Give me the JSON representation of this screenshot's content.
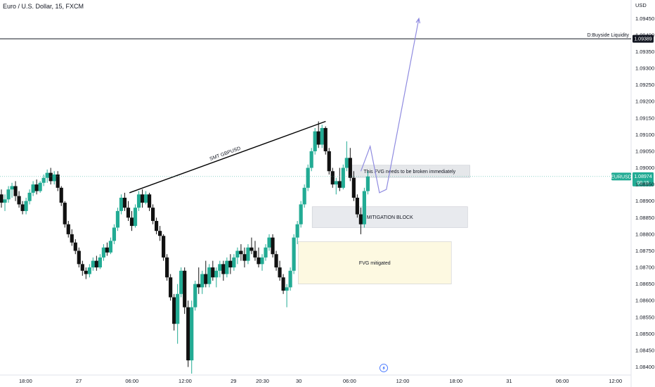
{
  "header": {
    "title": "Euro / U.S. Dollar, 15, FXCM"
  },
  "colors": {
    "up": "#22ab94",
    "down": "#111111",
    "arrow": "#8f8be0",
    "price_tag": "#22ab94",
    "liquidity_tag": "#131722"
  },
  "chart_data": {
    "type": "candlestick",
    "title": "Euro / U.S. Dollar, 15, FXCM",
    "y_axis": {
      "currency": "USD",
      "ylim": [
        1.0838,
        1.0951
      ],
      "ticks": [
        "1.09450",
        "1.09400",
        "1.09350",
        "1.09300",
        "1.09250",
        "1.09200",
        "1.09150",
        "1.09100",
        "1.09050",
        "1.09000",
        "1.08950",
        "1.08900",
        "1.08850",
        "1.08800",
        "1.08750",
        "1.08700",
        "1.08650",
        "1.08600",
        "1.08550",
        "1.08500",
        "1.08450",
        "1.08400"
      ]
    },
    "x_axis": {
      "ticks": [
        {
          "label": "18:00",
          "bar": 10
        },
        {
          "label": "27",
          "bar": 32
        },
        {
          "label": "06:00",
          "bar": 54
        },
        {
          "label": "12:00",
          "bar": 76
        },
        {
          "label": "29",
          "bar": 96
        },
        {
          "label": "20:30",
          "bar": 108
        },
        {
          "label": "30",
          "bar": 123
        },
        {
          "label": "06:00",
          "bar": 144
        },
        {
          "label": "12:00",
          "bar": 166
        },
        {
          "label": "18:00",
          "bar": 188
        },
        {
          "label": "31",
          "bar": 210
        },
        {
          "label": "06:00",
          "bar": 232
        },
        {
          "label": "12:00",
          "bar": 254
        }
      ]
    },
    "bar_count": 260,
    "candles": [
      {
        "o": 1.0892,
        "h": 1.08935,
        "l": 1.0888,
        "c": 1.08895
      },
      {
        "o": 1.08895,
        "h": 1.0892,
        "l": 1.0887,
        "c": 1.08905
      },
      {
        "o": 1.08905,
        "h": 1.08945,
        "l": 1.08895,
        "c": 1.08935
      },
      {
        "o": 1.08935,
        "h": 1.08955,
        "l": 1.0891,
        "c": 1.08945
      },
      {
        "o": 1.08945,
        "h": 1.0896,
        "l": 1.089,
        "c": 1.08915
      },
      {
        "o": 1.08915,
        "h": 1.0893,
        "l": 1.0888,
        "c": 1.0889
      },
      {
        "o": 1.0889,
        "h": 1.089,
        "l": 1.0886,
        "c": 1.0887
      },
      {
        "o": 1.0887,
        "h": 1.0891,
        "l": 1.0886,
        "c": 1.089
      },
      {
        "o": 1.089,
        "h": 1.08935,
        "l": 1.0889,
        "c": 1.08925
      },
      {
        "o": 1.08925,
        "h": 1.0896,
        "l": 1.08915,
        "c": 1.0895
      },
      {
        "o": 1.0895,
        "h": 1.08965,
        "l": 1.0892,
        "c": 1.0893
      },
      {
        "o": 1.0893,
        "h": 1.0896,
        "l": 1.08925,
        "c": 1.08955
      },
      {
        "o": 1.08955,
        "h": 1.0898,
        "l": 1.08945,
        "c": 1.0897
      },
      {
        "o": 1.0897,
        "h": 1.08995,
        "l": 1.08955,
        "c": 1.08985
      },
      {
        "o": 1.08985,
        "h": 1.09,
        "l": 1.0895,
        "c": 1.0896
      },
      {
        "o": 1.0896,
        "h": 1.0899,
        "l": 1.0895,
        "c": 1.0898
      },
      {
        "o": 1.0898,
        "h": 1.0899,
        "l": 1.0893,
        "c": 1.0894
      },
      {
        "o": 1.0894,
        "h": 1.08945,
        "l": 1.08885,
        "c": 1.08895
      },
      {
        "o": 1.08895,
        "h": 1.089,
        "l": 1.0882,
        "c": 1.0883
      },
      {
        "o": 1.0883,
        "h": 1.0884,
        "l": 1.0879,
        "c": 1.088
      },
      {
        "o": 1.088,
        "h": 1.08815,
        "l": 1.08765,
        "c": 1.08775
      },
      {
        "o": 1.08775,
        "h": 1.08785,
        "l": 1.0874,
        "c": 1.0875
      },
      {
        "o": 1.0875,
        "h": 1.0876,
        "l": 1.087,
        "c": 1.0871
      },
      {
        "o": 1.0871,
        "h": 1.0872,
        "l": 1.08675,
        "c": 1.0869
      },
      {
        "o": 1.0869,
        "h": 1.087,
        "l": 1.08665,
        "c": 1.0868
      },
      {
        "o": 1.0868,
        "h": 1.0871,
        "l": 1.0867,
        "c": 1.087
      },
      {
        "o": 1.087,
        "h": 1.0873,
        "l": 1.0869,
        "c": 1.0872
      },
      {
        "o": 1.0872,
        "h": 1.08735,
        "l": 1.0869,
        "c": 1.087
      },
      {
        "o": 1.087,
        "h": 1.0874,
        "l": 1.08695,
        "c": 1.0873
      },
      {
        "o": 1.0873,
        "h": 1.0877,
        "l": 1.0872,
        "c": 1.0876
      },
      {
        "o": 1.0876,
        "h": 1.08775,
        "l": 1.08735,
        "c": 1.08745
      },
      {
        "o": 1.08745,
        "h": 1.0879,
        "l": 1.0874,
        "c": 1.0878
      },
      {
        "o": 1.0878,
        "h": 1.0883,
        "l": 1.0877,
        "c": 1.0882
      },
      {
        "o": 1.0882,
        "h": 1.0888,
        "l": 1.0881,
        "c": 1.0887
      },
      {
        "o": 1.0887,
        "h": 1.0892,
        "l": 1.0886,
        "c": 1.0891
      },
      {
        "o": 1.0891,
        "h": 1.08925,
        "l": 1.0887,
        "c": 1.0888
      },
      {
        "o": 1.0888,
        "h": 1.089,
        "l": 1.0884,
        "c": 1.0885
      },
      {
        "o": 1.0885,
        "h": 1.0887,
        "l": 1.0881,
        "c": 1.08825
      },
      {
        "o": 1.08825,
        "h": 1.0889,
        "l": 1.0882,
        "c": 1.0888
      },
      {
        "o": 1.0888,
        "h": 1.0893,
        "l": 1.0887,
        "c": 1.0892
      },
      {
        "o": 1.0892,
        "h": 1.08935,
        "l": 1.0888,
        "c": 1.08895
      },
      {
        "o": 1.08895,
        "h": 1.0893,
        "l": 1.0889,
        "c": 1.0892
      },
      {
        "o": 1.0892,
        "h": 1.08925,
        "l": 1.0887,
        "c": 1.0888
      },
      {
        "o": 1.0888,
        "h": 1.0889,
        "l": 1.0883,
        "c": 1.0884
      },
      {
        "o": 1.0884,
        "h": 1.0885,
        "l": 1.088,
        "c": 1.0881
      },
      {
        "o": 1.0881,
        "h": 1.08825,
        "l": 1.0878,
        "c": 1.08795
      },
      {
        "o": 1.08795,
        "h": 1.088,
        "l": 1.0872,
        "c": 1.0873
      },
      {
        "o": 1.0873,
        "h": 1.0874,
        "l": 1.0866,
        "c": 1.0867
      },
      {
        "o": 1.0867,
        "h": 1.0868,
        "l": 1.086,
        "c": 1.0861
      },
      {
        "o": 1.0861,
        "h": 1.0862,
        "l": 1.0851,
        "c": 1.0853
      },
      {
        "o": 1.0853,
        "h": 1.0865,
        "l": 1.0847,
        "c": 1.0862
      },
      {
        "o": 1.0862,
        "h": 1.087,
        "l": 1.0861,
        "c": 1.0869
      },
      {
        "o": 1.0869,
        "h": 1.087,
        "l": 1.0856,
        "c": 1.0858
      },
      {
        "o": 1.0858,
        "h": 1.086,
        "l": 1.084,
        "c": 1.0842
      },
      {
        "o": 1.0842,
        "h": 1.086,
        "l": 1.0838,
        "c": 1.0858
      },
      {
        "o": 1.0858,
        "h": 1.0866,
        "l": 1.0857,
        "c": 1.0865
      },
      {
        "o": 1.0865,
        "h": 1.087,
        "l": 1.0862,
        "c": 1.0864
      },
      {
        "o": 1.0864,
        "h": 1.0869,
        "l": 1.0862,
        "c": 1.0868
      },
      {
        "o": 1.0868,
        "h": 1.0872,
        "l": 1.0864,
        "c": 1.0865
      },
      {
        "o": 1.0865,
        "h": 1.0871,
        "l": 1.0864,
        "c": 1.087
      },
      {
        "o": 1.087,
        "h": 1.0872,
        "l": 1.0866,
        "c": 1.0867
      },
      {
        "o": 1.0867,
        "h": 1.087,
        "l": 1.0864,
        "c": 1.0869
      },
      {
        "o": 1.0869,
        "h": 1.0872,
        "l": 1.0867,
        "c": 1.0871
      },
      {
        "o": 1.0871,
        "h": 1.0872,
        "l": 1.0866,
        "c": 1.0868
      },
      {
        "o": 1.0868,
        "h": 1.0873,
        "l": 1.0867,
        "c": 1.0872
      },
      {
        "o": 1.0872,
        "h": 1.0874,
        "l": 1.0868,
        "c": 1.087
      },
      {
        "o": 1.087,
        "h": 1.0874,
        "l": 1.0869,
        "c": 1.0873
      },
      {
        "o": 1.0873,
        "h": 1.0876,
        "l": 1.0871,
        "c": 1.0875
      },
      {
        "o": 1.0875,
        "h": 1.0877,
        "l": 1.0872,
        "c": 1.0874
      },
      {
        "o": 1.0874,
        "h": 1.0876,
        "l": 1.087,
        "c": 1.0872
      },
      {
        "o": 1.0872,
        "h": 1.0877,
        "l": 1.0871,
        "c": 1.0876
      },
      {
        "o": 1.0876,
        "h": 1.0879,
        "l": 1.0874,
        "c": 1.0875
      },
      {
        "o": 1.0875,
        "h": 1.0878,
        "l": 1.0872,
        "c": 1.0873
      },
      {
        "o": 1.0873,
        "h": 1.0876,
        "l": 1.087,
        "c": 1.0871
      },
      {
        "o": 1.0871,
        "h": 1.0874,
        "l": 1.0869,
        "c": 1.0873
      },
      {
        "o": 1.0873,
        "h": 1.0877,
        "l": 1.0872,
        "c": 1.0876
      },
      {
        "o": 1.0876,
        "h": 1.088,
        "l": 1.0875,
        "c": 1.0879
      },
      {
        "o": 1.0879,
        "h": 1.088,
        "l": 1.0873,
        "c": 1.0874
      },
      {
        "o": 1.0874,
        "h": 1.0875,
        "l": 1.0869,
        "c": 1.087
      },
      {
        "o": 1.087,
        "h": 1.0872,
        "l": 1.0866,
        "c": 1.0867
      },
      {
        "o": 1.0867,
        "h": 1.0868,
        "l": 1.0862,
        "c": 1.0863
      },
      {
        "o": 1.0863,
        "h": 1.0865,
        "l": 1.0858,
        "c": 1.0864
      },
      {
        "o": 1.0864,
        "h": 1.087,
        "l": 1.0863,
        "c": 1.0869
      },
      {
        "o": 1.0869,
        "h": 1.088,
        "l": 1.0868,
        "c": 1.0879
      },
      {
        "o": 1.0879,
        "h": 1.0884,
        "l": 1.0877,
        "c": 1.0883
      },
      {
        "o": 1.0883,
        "h": 1.089,
        "l": 1.0882,
        "c": 1.0889
      },
      {
        "o": 1.0889,
        "h": 1.0895,
        "l": 1.0888,
        "c": 1.0894
      },
      {
        "o": 1.0894,
        "h": 1.0901,
        "l": 1.0893,
        "c": 1.09
      },
      {
        "o": 1.09,
        "h": 1.0906,
        "l": 1.0899,
        "c": 1.0905
      },
      {
        "o": 1.0905,
        "h": 1.0912,
        "l": 1.0904,
        "c": 1.0911
      },
      {
        "o": 1.0911,
        "h": 1.0914,
        "l": 1.0906,
        "c": 1.0907
      },
      {
        "o": 1.0907,
        "h": 1.0913,
        "l": 1.0906,
        "c": 1.0912
      },
      {
        "o": 1.0912,
        "h": 1.09125,
        "l": 1.0904,
        "c": 1.0905
      },
      {
        "o": 1.0905,
        "h": 1.0906,
        "l": 1.0898,
        "c": 1.0899
      },
      {
        "o": 1.0899,
        "h": 1.09,
        "l": 1.0894,
        "c": 1.0895
      },
      {
        "o": 1.0895,
        "h": 1.0897,
        "l": 1.0892,
        "c": 1.0896
      },
      {
        "o": 1.0896,
        "h": 1.09,
        "l": 1.0893,
        "c": 1.0894
      },
      {
        "o": 1.0894,
        "h": 1.0901,
        "l": 1.08935,
        "c": 1.09
      },
      {
        "o": 1.09,
        "h": 1.0908,
        "l": 1.0899,
        "c": 1.0903
      },
      {
        "o": 1.0903,
        "h": 1.0906,
        "l": 1.0896,
        "c": 1.0897
      },
      {
        "o": 1.0897,
        "h": 1.0899,
        "l": 1.089,
        "c": 1.0891
      },
      {
        "o": 1.0891,
        "h": 1.0892,
        "l": 1.0885,
        "c": 1.0886
      },
      {
        "o": 1.0886,
        "h": 1.0888,
        "l": 1.088,
        "c": 1.0883
      },
      {
        "o": 1.0883,
        "h": 1.0894,
        "l": 1.0882,
        "c": 1.0893
      },
      {
        "o": 1.0893,
        "h": 1.0899,
        "l": 1.0892,
        "c": 1.08974
      }
    ],
    "candle_positions": [
      {
        "from_bar": 0,
        "to_bar": 44,
        "step": 1
      },
      {
        "from_bar": 44,
        "to_bar": 95,
        "step": 1
      },
      {
        "from_bar": 95,
        "to_bar": 146,
        "step": 1
      },
      {
        "from_bar": 146,
        "to_bar": 158,
        "step": 1
      }
    ],
    "current_price": {
      "value": 1.08974,
      "label": "EURUSD",
      "value_label": "1.08974",
      "countdown": "08:15"
    },
    "levels": [
      {
        "name": "Buyside Liquidity",
        "label": "D:Buyside Liquidity",
        "value": 1.09389,
        "value_label": "1.09389"
      }
    ],
    "annotations": {
      "smt_label": "SMT GBPUSD",
      "smt_line": {
        "from": {
          "bar": 54,
          "y": 1.08925
        },
        "to": {
          "bar": 138,
          "y": 1.0914
        }
      },
      "zones": [
        {
          "label": "This FVG needs to be broken immediately",
          "x0_bar": 150,
          "x1_bar": 202,
          "y_top": 1.09008,
          "y_bottom": 1.08971,
          "fill": "#e5e7ea"
        },
        {
          "label": "MITIGATION BLOCK",
          "x0_bar": 134,
          "x1_bar": 201,
          "y_top": 1.08883,
          "y_bottom": 1.0882,
          "fill": "#e8eaee"
        },
        {
          "label": "FVG mitigated",
          "x0_bar": 128,
          "x1_bar": 194,
          "y_top": 1.08778,
          "y_bottom": 1.0865,
          "fill": "#fdf9e1"
        }
      ],
      "projection": [
        {
          "bar": 155,
          "y": 1.0899
        },
        {
          "bar": 159,
          "y": 1.09065
        },
        {
          "bar": 163,
          "y": 1.08925
        },
        {
          "bar": 166,
          "y": 1.08935
        },
        {
          "bar": 180,
          "y": 1.0945
        }
      ]
    },
    "bottom_icon": "lightning-icon",
    "grid": false,
    "legend": "none"
  }
}
